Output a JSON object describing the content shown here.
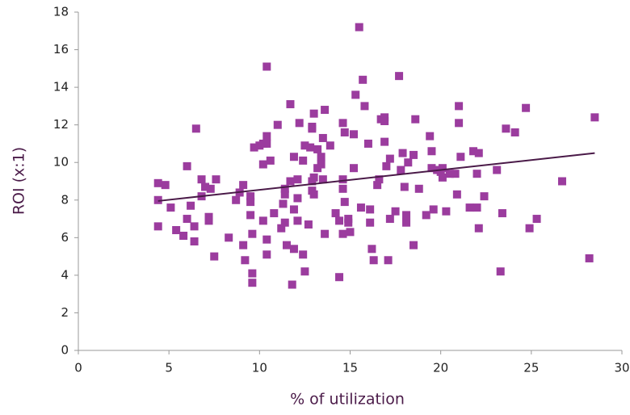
{
  "chart_data": {
    "type": "scatter",
    "x_label": "% of utilization",
    "y_label": "ROI (x:1)",
    "xlim": [
      0,
      30
    ],
    "xticks": [
      0,
      5,
      10,
      15,
      20,
      25,
      30
    ],
    "ylim": [
      0,
      18
    ],
    "yticks": [
      0,
      2,
      4,
      6,
      8,
      10,
      12,
      14,
      16,
      18
    ],
    "color": "#9b3c9e",
    "x": [
      4.4,
      4.4,
      4.4,
      4.8,
      5.1,
      5.4,
      5.8,
      6.0,
      6.0,
      6.2,
      6.4,
      6.4,
      6.5,
      6.8,
      6.8,
      7.0,
      7.2,
      7.2,
      7.3,
      7.5,
      7.6,
      8.3,
      8.7,
      8.9,
      9.1,
      9.1,
      9.2,
      9.5,
      9.5,
      9.5,
      9.6,
      9.6,
      9.6,
      9.7,
      10.0,
      10.2,
      10.2,
      10.2,
      10.4,
      10.4,
      10.4,
      10.4,
      10.4,
      10.6,
      10.8,
      11.0,
      11.2,
      11.3,
      11.4,
      11.4,
      11.4,
      11.5,
      11.7,
      11.7,
      11.8,
      11.9,
      11.9,
      11.9,
      12.1,
      12.1,
      12.1,
      12.2,
      12.4,
      12.4,
      12.5,
      12.5,
      12.7,
      12.8,
      12.9,
      12.9,
      12.9,
      12.9,
      13.0,
      13.0,
      13.0,
      13.2,
      13.2,
      13.4,
      13.4,
      13.5,
      13.5,
      13.6,
      13.6,
      13.9,
      14.2,
      14.4,
      14.4,
      14.6,
      14.6,
      14.6,
      14.6,
      14.7,
      14.7,
      14.9,
      14.9,
      15.0,
      15.2,
      15.2,
      15.3,
      15.5,
      15.6,
      15.7,
      15.8,
      16.0,
      16.1,
      16.1,
      16.2,
      16.3,
      16.5,
      16.6,
      16.7,
      16.9,
      16.9,
      16.9,
      17.0,
      17.1,
      17.2,
      17.2,
      17.5,
      17.7,
      17.8,
      17.9,
      18.0,
      18.1,
      18.1,
      18.2,
      18.5,
      18.5,
      18.6,
      18.8,
      19.2,
      19.4,
      19.5,
      19.5,
      19.6,
      19.8,
      20.0,
      20.1,
      20.1,
      20.3,
      20.5,
      20.8,
      20.9,
      21.0,
      21.0,
      21.1,
      21.6,
      21.8,
      22.0,
      22.0,
      22.1,
      22.1,
      22.4,
      23.1,
      23.3,
      23.4,
      23.6,
      24.1,
      24.7,
      24.9,
      25.3,
      26.7,
      28.2,
      28.5
    ],
    "values": [
      8.9,
      8.0,
      6.6,
      8.8,
      7.6,
      6.4,
      6.1,
      9.8,
      7.0,
      7.7,
      5.8,
      6.6,
      11.8,
      9.1,
      8.2,
      8.7,
      7.1,
      6.9,
      8.6,
      5.0,
      9.1,
      6.0,
      8.0,
      8.4,
      5.6,
      8.8,
      4.8,
      8.2,
      7.9,
      7.2,
      6.2,
      4.1,
      3.6,
      10.8,
      10.9,
      11.0,
      9.9,
      6.9,
      15.1,
      11.4,
      11.0,
      5.9,
      5.1,
      10.1,
      7.3,
      12.0,
      6.5,
      7.8,
      8.6,
      8.3,
      6.8,
      5.6,
      13.1,
      9.0,
      3.5,
      10.3,
      7.5,
      5.4,
      9.1,
      6.9,
      8.1,
      12.1,
      5.1,
      10.1,
      10.9,
      4.2,
      6.7,
      10.8,
      9.0,
      11.9,
      11.8,
      8.5,
      12.6,
      9.2,
      8.3,
      10.7,
      9.7,
      10.3,
      9.9,
      9.1,
      11.3,
      12.8,
      6.2,
      10.9,
      7.3,
      3.9,
      6.9,
      12.1,
      9.1,
      8.6,
      6.2,
      11.6,
      7.9,
      7.0,
      6.8,
      6.3,
      9.7,
      11.5,
      13.6,
      17.2,
      7.6,
      14.4,
      13.0,
      11.0,
      7.5,
      6.8,
      5.4,
      4.8,
      8.8,
      9.1,
      12.3,
      12.4,
      12.2,
      11.1,
      9.8,
      4.8,
      10.2,
      7.0,
      7.4,
      14.6,
      9.6,
      10.5,
      8.7,
      7.2,
      6.8,
      10.0,
      10.4,
      5.6,
      12.3,
      8.6,
      7.2,
      11.4,
      9.7,
      10.6,
      7.5,
      9.6,
      9.5,
      9.7,
      9.2,
      7.4,
      9.4,
      9.4,
      8.3,
      13.0,
      12.1,
      10.3,
      7.6,
      10.6,
      9.4,
      7.6,
      10.5,
      6.5,
      8.2,
      9.6,
      4.2,
      7.3,
      11.8,
      11.6,
      12.9,
      6.5,
      7.0,
      9.0,
      4.9,
      12.4
    ],
    "trendline": {
      "color": "#4a1a48",
      "x": [
        4.4,
        28.5
      ],
      "values": [
        7.95,
        10.5
      ]
    }
  }
}
